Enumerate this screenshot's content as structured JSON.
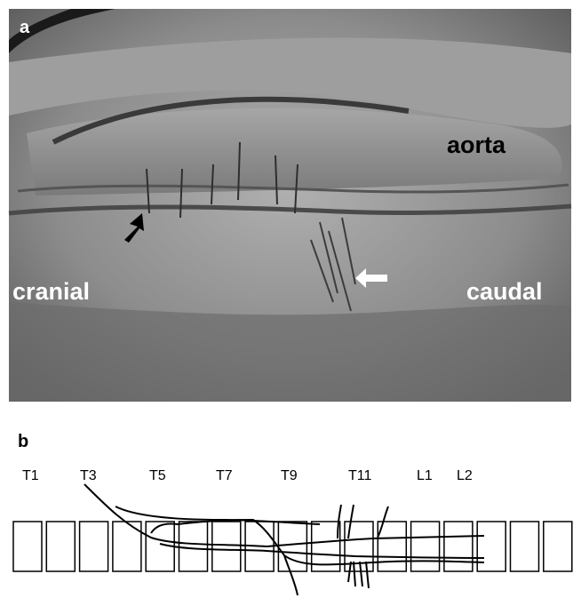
{
  "panel_a": {
    "label": "a",
    "annotations": {
      "aorta": "aorta",
      "cranial": "cranial",
      "caudal": "caudal"
    }
  },
  "panel_b": {
    "label": "b",
    "vertebra_labels": [
      "T1",
      "T3",
      "T5",
      "T7",
      "T9",
      "T11",
      "L1",
      "L2"
    ]
  }
}
